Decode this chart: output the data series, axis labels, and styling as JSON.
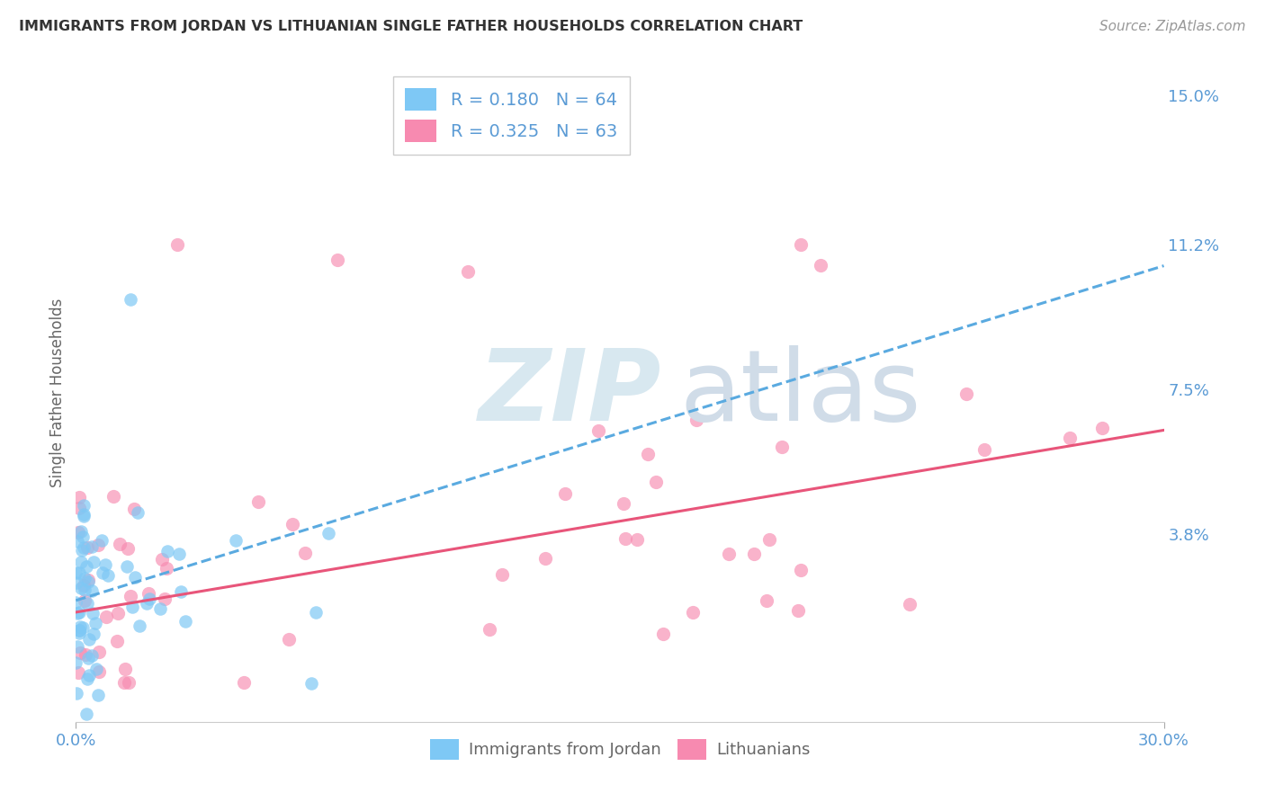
{
  "title": "IMMIGRANTS FROM JORDAN VS LITHUANIAN SINGLE FATHER HOUSEHOLDS CORRELATION CHART",
  "source": "Source: ZipAtlas.com",
  "ylabel": "Single Father Households",
  "xlim": [
    0.0,
    0.3
  ],
  "ylim": [
    -0.01,
    0.158
  ],
  "ytick_values": [
    0.038,
    0.075,
    0.112,
    0.15
  ],
  "ytick_labels": [
    "3.8%",
    "7.5%",
    "11.2%",
    "15.0%"
  ],
  "xtick_values": [
    0.0,
    0.3
  ],
  "xtick_labels": [
    "0.0%",
    "30.0%"
  ],
  "series1_name": "Immigrants from Jordan",
  "series2_name": "Lithuanians",
  "series1_color": "#7ec8f5",
  "series2_color": "#f78ab0",
  "series1_line_color": "#5aaae0",
  "series2_line_color": "#e8557a",
  "series1_R": 0.18,
  "series1_N": 64,
  "series2_R": 0.325,
  "series2_N": 63,
  "jordan_intercept": 0.021,
  "jordan_slope": 0.285,
  "lith_intercept": 0.018,
  "lith_slope": 0.155,
  "axis_color": "#5b9bd5",
  "grid_color": "#cccccc",
  "title_color": "#333333",
  "source_color": "#999999",
  "ylabel_color": "#666666",
  "watermark_zip_color": "#d8e8f0",
  "watermark_atlas_color": "#d0dce8",
  "background_color": "#ffffff"
}
